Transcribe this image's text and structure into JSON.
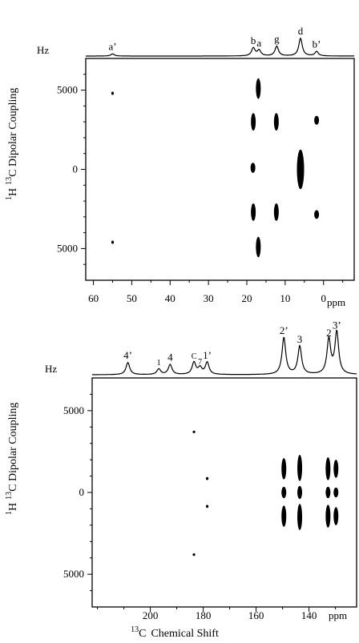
{
  "chart_data": [
    {
      "type": "scatter",
      "panel": "top",
      "title": "",
      "xlabel": "",
      "x_unit": "ppm",
      "spectrum_unit": "Hz",
      "ylabel_parts": [
        "1",
        "H",
        "13",
        "C Dipolar Coupling"
      ],
      "xlim": [
        62,
        -8
      ],
      "ylim": [
        -7000,
        7000
      ],
      "x_ticks": [
        60,
        50,
        40,
        30,
        20,
        10,
        0
      ],
      "y_ticks": [
        {
          "value": 5000,
          "label": "5000"
        },
        {
          "value": 0,
          "label": "0"
        },
        {
          "value": -5000,
          "label": "5000"
        }
      ],
      "peaks": [
        {
          "label": "a’",
          "x": 55,
          "height": 0.12
        },
        {
          "label": "b",
          "x": 18.3,
          "height": 0.45
        },
        {
          "label": "a",
          "x": 16.8,
          "height": 0.32
        },
        {
          "label": "g",
          "x": 12.2,
          "height": 0.55
        },
        {
          "label": "d",
          "x": 6,
          "height": 1.0
        },
        {
          "label": "b’",
          "x": 1.8,
          "height": 0.25
        }
      ],
      "points": [
        {
          "x": 55,
          "y": 4800,
          "ry": 100
        },
        {
          "x": 55,
          "y": -4600,
          "ry": 100
        },
        {
          "x": 17,
          "y": 5100,
          "ry": 650
        },
        {
          "x": 18.3,
          "y": 3000,
          "ry": 550
        },
        {
          "x": 12.3,
          "y": 3000,
          "ry": 550
        },
        {
          "x": 1.8,
          "y": 3100,
          "ry": 280
        },
        {
          "x": 18.4,
          "y": 100,
          "ry": 320
        },
        {
          "x": 6,
          "y": 0,
          "ry": 1250
        },
        {
          "x": 18.3,
          "y": -2700,
          "ry": 550
        },
        {
          "x": 12.3,
          "y": -2700,
          "ry": 550
        },
        {
          "x": 1.8,
          "y": -2850,
          "ry": 280
        },
        {
          "x": 17,
          "y": -4900,
          "ry": 650
        }
      ]
    },
    {
      "type": "scatter",
      "panel": "bottom",
      "title": "",
      "xlabel": "Chemical Shift",
      "xlabel_prefix": "13",
      "xlabel_nucleus": "C",
      "x_unit": "ppm",
      "spectrum_unit": "Hz",
      "ylabel_parts": [
        "1",
        "H",
        "13",
        "C Dipolar Coupling"
      ],
      "xlim": [
        222,
        122
      ],
      "ylim": [
        -7000,
        7000
      ],
      "x_ticks": [
        200,
        180,
        160,
        140
      ],
      "y_ticks": [
        {
          "value": 5000,
          "label": "5000"
        },
        {
          "value": 0,
          "label": "0"
        },
        {
          "value": -5000,
          "label": "5000"
        }
      ],
      "peaks": [
        {
          "label": "4’",
          "x": 208.5,
          "height": 0.28,
          "small": false
        },
        {
          "label": "1",
          "x": 196.8,
          "height": 0.13,
          "small": true
        },
        {
          "label": "4",
          "x": 192.5,
          "height": 0.23,
          "small": false
        },
        {
          "label": "C",
          "x": 183.5,
          "height": 0.28,
          "small": true
        },
        {
          "label": "7",
          "x": 181.2,
          "height": 0.15,
          "small": true
        },
        {
          "label": "1’",
          "x": 178.5,
          "height": 0.28,
          "small": false
        },
        {
          "label": "2’",
          "x": 149.5,
          "height": 0.85,
          "small": false
        },
        {
          "label": "3",
          "x": 143.5,
          "height": 0.65,
          "small": false
        },
        {
          "label": "2",
          "x": 132.5,
          "height": 0.8,
          "small": false
        },
        {
          "label": "3’",
          "x": 129.5,
          "height": 0.97,
          "small": false
        }
      ],
      "points": [
        {
          "x": 183.5,
          "y": 3700,
          "ry": 80
        },
        {
          "x": 178.5,
          "y": 850,
          "ry": 90
        },
        {
          "x": 178.5,
          "y": -850,
          "ry": 90
        },
        {
          "x": 183.5,
          "y": -3800,
          "ry": 80
        },
        {
          "x": 149.5,
          "y": 1450,
          "ry": 650
        },
        {
          "x": 149.5,
          "y": 0,
          "ry": 350
        },
        {
          "x": 149.5,
          "y": -1450,
          "ry": 650
        },
        {
          "x": 143.5,
          "y": 1500,
          "ry": 800
        },
        {
          "x": 143.5,
          "y": 0,
          "ry": 400
        },
        {
          "x": 143.5,
          "y": -1500,
          "ry": 800
        },
        {
          "x": 132.8,
          "y": 1450,
          "ry": 700
        },
        {
          "x": 132.8,
          "y": 0,
          "ry": 350
        },
        {
          "x": 132.8,
          "y": -1450,
          "ry": 700
        },
        {
          "x": 129.8,
          "y": 1450,
          "ry": 550
        },
        {
          "x": 129.8,
          "y": 0,
          "ry": 300
        },
        {
          "x": 129.8,
          "y": -1450,
          "ry": 550
        }
      ]
    }
  ]
}
